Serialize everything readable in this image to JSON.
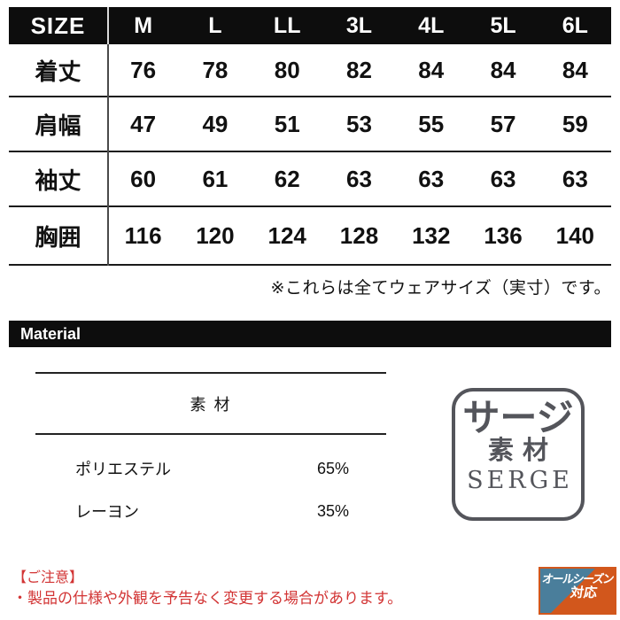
{
  "size_chart": {
    "header": {
      "label": "SIZE",
      "columns": [
        "M",
        "L",
        "LL",
        "3L",
        "4L",
        "5L",
        "6L"
      ]
    },
    "rows": [
      {
        "label": "着丈",
        "values": [
          "76",
          "78",
          "80",
          "82",
          "84",
          "84",
          "84"
        ]
      },
      {
        "label": "肩幅",
        "values": [
          "47",
          "49",
          "51",
          "53",
          "55",
          "57",
          "59"
        ]
      },
      {
        "label": "袖丈",
        "values": [
          "60",
          "61",
          "62",
          "63",
          "63",
          "63",
          "63"
        ]
      },
      {
        "label": "胸囲",
        "values": [
          "116",
          "120",
          "124",
          "128",
          "132",
          "136",
          "140"
        ]
      }
    ],
    "note": "※これらは全てウェアサイズ（実寸）です。"
  },
  "material_section": {
    "header_label": "Material",
    "table_title": "素 材",
    "rows": [
      {
        "name": "ポリエステル",
        "percent": "65%"
      },
      {
        "name": "レーヨン",
        "percent": "35%"
      }
    ],
    "serge_badge": {
      "line1": "サージ",
      "line2": "素材",
      "line3": "SERGE"
    }
  },
  "notice": {
    "title": "【ご注意】",
    "line": "・製品の仕様や外観を予告なく変更する場合があります。"
  },
  "season_badge": {
    "line1": "オールシーズン",
    "line2": "対応"
  },
  "colors": {
    "bar_black": "#0d0d0d",
    "notice_red": "#d23434",
    "serge_gray": "#54555b",
    "season_teal": "#4a7e9b",
    "season_orange": "#d2571c"
  }
}
